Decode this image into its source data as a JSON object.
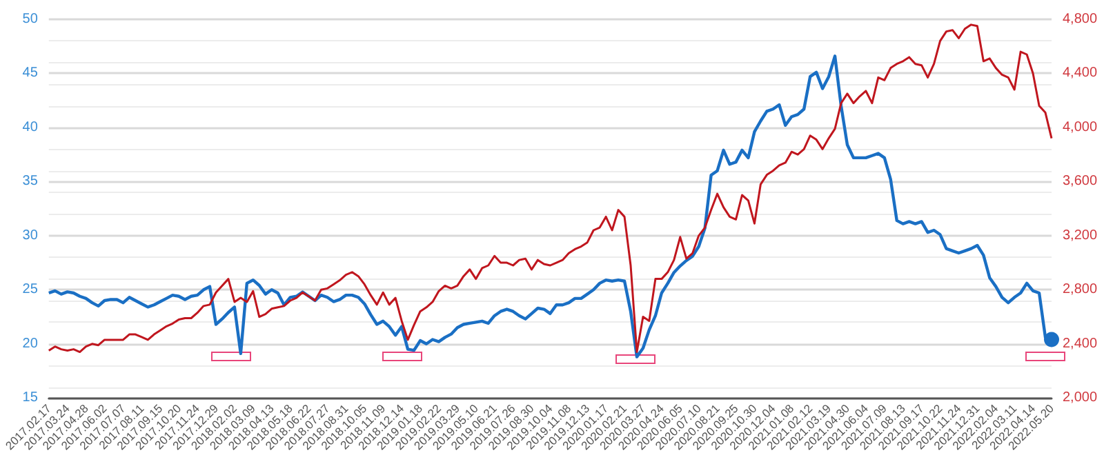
{
  "chart_data": {
    "type": "line",
    "categories": [
      "2017.02.17",
      null,
      null,
      "2017.03.24",
      null,
      null,
      "2017.04.28",
      null,
      null,
      "2017.06.02",
      null,
      null,
      "2017.07.07",
      null,
      null,
      "2017.08.11",
      null,
      null,
      "2017.09.15",
      null,
      null,
      "2017.10.20",
      null,
      null,
      "2017.11.24",
      null,
      null,
      "2017.12.29",
      null,
      null,
      "2018.02.02",
      null,
      null,
      "2018.03.09",
      null,
      null,
      "2018.04.13",
      null,
      null,
      "2018.05.18",
      null,
      null,
      "2018.06.22",
      null,
      null,
      "2018.07.27",
      null,
      null,
      "2018.08.31",
      null,
      null,
      "2018.10.05",
      null,
      null,
      "2018.11.09",
      null,
      null,
      "2018.12.14",
      null,
      null,
      "2019.01.18",
      null,
      null,
      "2019.02.22",
      null,
      null,
      "2019.03.29",
      null,
      null,
      "2019.05.10",
      null,
      null,
      "2019.06.21",
      null,
      null,
      "2019.07.26",
      null,
      null,
      "2019.08.30",
      null,
      null,
      "2019.10.04",
      null,
      null,
      "2019.11.08",
      null,
      null,
      "2019.12.13",
      null,
      null,
      "2020.01.17",
      null,
      null,
      "2020.02.21",
      null,
      null,
      "2020.03.27",
      null,
      null,
      "2020.04.24",
      null,
      null,
      "2020.06.05",
      null,
      null,
      "2020.07.10",
      null,
      null,
      "2020.08.21",
      null,
      null,
      "2020.09.25",
      null,
      null,
      "2020.10.30",
      null,
      null,
      "2020.12.04",
      null,
      null,
      "2021.01.08",
      null,
      null,
      "2021.02.12",
      null,
      null,
      "2021.03.19",
      null,
      null,
      "2021.04.30",
      null,
      null,
      "2021.06.04",
      null,
      null,
      "2021.07.09",
      null,
      null,
      "2021.08.13",
      null,
      null,
      "2021.09.17",
      null,
      null,
      "2021.10.22",
      null,
      null,
      "2021.11.24",
      null,
      null,
      "2021.12.31",
      null,
      null,
      "2022.02.04",
      null,
      null,
      "2022.03.11",
      null,
      null,
      "2022.04.14",
      null,
      null,
      "2022.05.20"
    ],
    "series": [
      {
        "color": "#1a6fc4",
        "values": [
          24.7,
          24.9,
          24.6,
          24.8,
          24.7,
          24.4,
          24.2,
          23.8,
          23.5,
          24.0,
          24.1,
          24.1,
          23.8,
          24.3,
          24.0,
          23.7,
          23.4,
          23.6,
          23.9,
          24.2,
          24.5,
          24.4,
          24.1,
          24.4,
          24.5,
          25.0,
          25.3,
          21.8,
          22.3,
          22.9,
          23.4,
          19.1,
          25.6,
          25.9,
          25.4,
          24.6,
          25.0,
          24.7,
          23.6,
          24.3,
          24.4,
          24.8,
          24.4,
          24.0,
          24.5,
          24.3,
          23.9,
          24.1,
          24.5,
          24.5,
          24.3,
          23.7,
          22.7,
          21.8,
          22.1,
          21.6,
          20.8,
          21.6,
          19.5,
          19.4,
          20.3,
          20.0,
          20.4,
          20.2,
          20.6,
          20.9,
          21.5,
          21.8,
          21.9,
          22.0,
          22.1,
          21.9,
          22.6,
          23.0,
          23.2,
          23.0,
          22.6,
          22.3,
          22.8,
          23.3,
          23.2,
          22.8,
          23.6,
          23.6,
          23.8,
          24.2,
          24.2,
          24.6,
          25.0,
          25.6,
          25.9,
          25.8,
          25.9,
          25.8,
          23.0,
          18.8,
          19.6,
          21.3,
          22.6,
          24.7,
          25.6,
          26.6,
          27.2,
          27.7,
          28.1,
          29.0,
          30.7,
          35.6,
          36.0,
          37.9,
          36.6,
          36.8,
          37.9,
          37.2,
          39.6,
          40.6,
          41.5,
          41.7,
          42.1,
          40.2,
          41.0,
          41.2,
          41.7,
          44.7,
          45.1,
          43.6,
          44.7,
          46.6,
          42.0,
          38.4,
          37.2,
          37.2,
          37.2,
          37.4,
          37.6,
          37.2,
          35.2,
          31.4,
          31.1,
          31.3,
          31.1,
          31.3,
          30.3,
          30.5,
          30.1,
          28.8,
          28.6,
          28.4,
          28.6,
          28.8,
          29.1,
          28.2,
          26.1,
          25.3,
          24.3,
          23.8,
          24.3,
          24.7,
          25.6,
          24.9,
          24.7,
          20.6,
          20.4
        ]
      },
      {
        "color": "#c0161e",
        "axis": "y2",
        "values": [
          2350,
          2380,
          2360,
          2350,
          2360,
          2340,
          2380,
          2400,
          2390,
          2430,
          2430,
          2430,
          2430,
          2470,
          2470,
          2450,
          2430,
          2470,
          2500,
          2530,
          2550,
          2580,
          2590,
          2590,
          2630,
          2680,
          2690,
          2780,
          2830,
          2880,
          2710,
          2740,
          2710,
          2790,
          2600,
          2620,
          2660,
          2670,
          2680,
          2720,
          2740,
          2780,
          2750,
          2720,
          2800,
          2810,
          2840,
          2870,
          2910,
          2930,
          2900,
          2840,
          2760,
          2690,
          2780,
          2690,
          2740,
          2570,
          2430,
          2540,
          2640,
          2670,
          2710,
          2790,
          2830,
          2810,
          2830,
          2900,
          2950,
          2880,
          2960,
          2980,
          3050,
          3000,
          3000,
          2980,
          3020,
          3030,
          2950,
          3020,
          2990,
          2980,
          3000,
          3020,
          3070,
          3100,
          3120,
          3150,
          3240,
          3260,
          3340,
          3240,
          3390,
          3340,
          2980,
          2340,
          2600,
          2570,
          2880,
          2880,
          2930,
          3020,
          3190,
          3030,
          3070,
          3200,
          3260,
          3390,
          3510,
          3410,
          3340,
          3320,
          3500,
          3460,
          3290,
          3580,
          3650,
          3680,
          3720,
          3740,
          3820,
          3800,
          3840,
          3940,
          3910,
          3840,
          3920,
          3990,
          4180,
          4250,
          4180,
          4230,
          4270,
          4180,
          4370,
          4350,
          4440,
          4470,
          4490,
          4520,
          4470,
          4460,
          4370,
          4470,
          4640,
          4710,
          4720,
          4660,
          4730,
          4760,
          4750,
          4490,
          4510,
          4440,
          4390,
          4370,
          4280,
          4560,
          4540,
          4400,
          4160,
          4110,
          3920
        ]
      }
    ],
    "ylim": [
      15,
      50
    ],
    "yticks": [
      15,
      20,
      25,
      30,
      35,
      40,
      45,
      50
    ],
    "y2lim": [
      2000,
      4800
    ],
    "y2ticks": [
      {
        "value": 2000,
        "label": "2,000"
      },
      {
        "value": 2400,
        "label": "2,400"
      },
      {
        "value": 2800,
        "label": "2,800"
      },
      {
        "value": 3200,
        "label": "3,200"
      },
      {
        "value": 3600,
        "label": "3,600"
      },
      {
        "value": 4000,
        "label": "4,000"
      },
      {
        "value": 4400,
        "label": "4,400"
      },
      {
        "value": 4800,
        "label": "4,800"
      }
    ],
    "grid": "y",
    "marker": "none",
    "line_style": "solid"
  }
}
